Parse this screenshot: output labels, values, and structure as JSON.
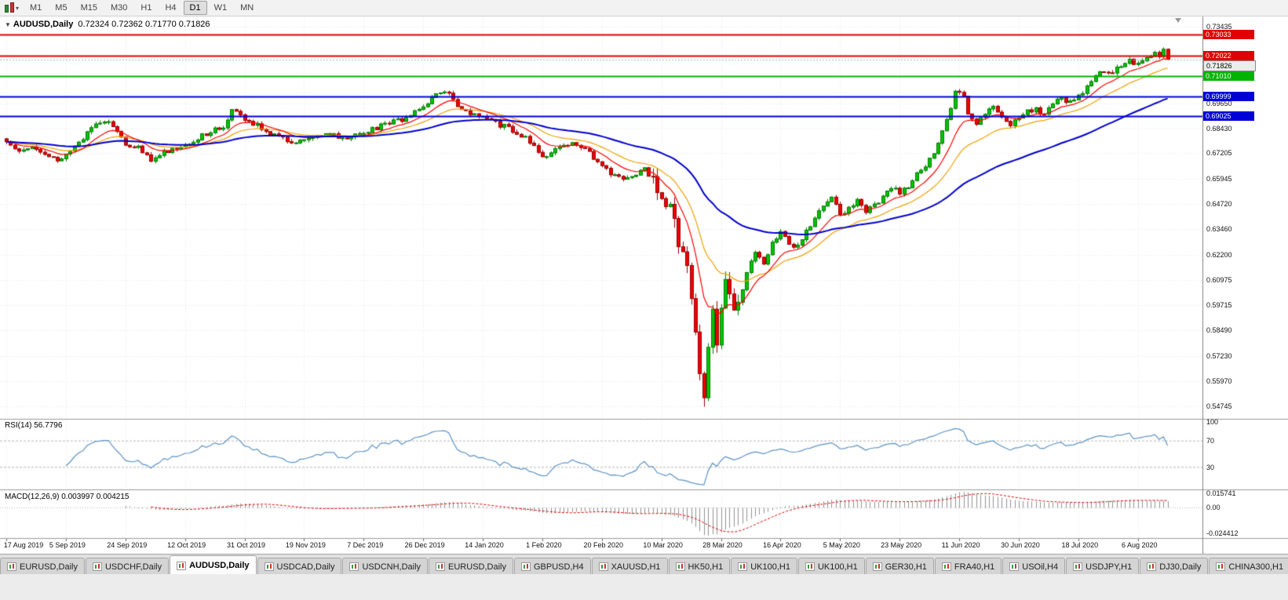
{
  "toolbar": {
    "timeframes": [
      "M1",
      "M5",
      "M15",
      "M30",
      "H1",
      "H4",
      "D1",
      "W1",
      "MN"
    ],
    "active_timeframe": "D1",
    "dropdown_icon": "▾"
  },
  "chart": {
    "collapse_icon": "▼",
    "symbol_period": "AUDUSD,Daily",
    "ohlc_display": "0.72324 0.72362 0.71770 0.71826",
    "y_axis_labels": [
      "0.73435",
      "0.69650",
      "0.68430",
      "0.67205",
      "0.65945",
      "0.64720",
      "0.63460",
      "0.62200",
      "0.60975",
      "0.59715",
      "0.58490",
      "0.57230",
      "0.55970",
      "0.54745"
    ],
    "x_axis_labels": [
      "17 Aug 2019",
      "5 Sep 2019",
      "24 Sep 2019",
      "12 Oct 2019",
      "31 Oct 2019",
      "19 Nov 2019",
      "7 Dec 2019",
      "26 Dec 2019",
      "14 Jan 2020",
      "1 Feb 2020",
      "20 Feb 2020",
      "10 Mar 2020",
      "28 Mar 2020",
      "16 Apr 2020",
      "5 May 2020",
      "23 May 2020",
      "11 Jun 2020",
      "30 Jun 2020",
      "18 Jul 2020",
      "6 Aug 2020"
    ],
    "levels": [
      {
        "value": 0.73033,
        "label": "0.73033",
        "color": "#e00000",
        "tag_text": "#ffffff"
      },
      {
        "value": 0.72022,
        "label": "0.72022",
        "color": "#e00000",
        "tag_text": "#ffffff"
      },
      {
        "value": 0.7101,
        "label": "0.71010",
        "color": "#00b400",
        "tag_text": "#ffffff"
      },
      {
        "value": 0.69999,
        "label": "0.69999",
        "color": "#0000d8",
        "tag_text": "#ffffff"
      },
      {
        "value": 0.69025,
        "label": "0.69025",
        "color": "#0000d8",
        "tag_text": "#ffffff"
      }
    ],
    "current_price": {
      "value": 0.71826,
      "label": "0.71826"
    },
    "rsi": {
      "label": "RSI(14)",
      "value": "56.7796",
      "scale_labels": [
        "100",
        "70",
        "30"
      ],
      "upper": 70,
      "lower": 30
    },
    "macd": {
      "label": "MACD(12,26,9)",
      "values": "0.003997 0.004215",
      "scale_top": "0.015741",
      "scale_zero": "0.00",
      "scale_bottom": "-0.024412"
    }
  },
  "chart_data": {
    "type": "candlestick",
    "symbol": "AUDUSD",
    "period": "Daily",
    "last_candle": {
      "open": 0.72324,
      "high": 0.72362,
      "low": 0.7177,
      "close": 0.71826
    },
    "visible_range": {
      "price_min": 0.54745,
      "price_max": 0.73435,
      "date_start": "17 Aug 2019",
      "date_end": "Aug 2020"
    },
    "num_candles": 274,
    "candles_per_x_label": 14,
    "horizontal_levels": [
      0.73033,
      0.72022,
      0.7101,
      0.69999,
      0.69025
    ],
    "overlays": [
      {
        "name": "ma-fast",
        "type": "ema",
        "period": 10
      },
      {
        "name": "ma-mid",
        "type": "ema",
        "period": 21
      },
      {
        "name": "ma-slow",
        "type": "ema",
        "period": 55
      }
    ],
    "rsi_period": 14,
    "macd_params": [
      12,
      26,
      9
    ],
    "noise": {
      "seed": 13,
      "amp": 0.0013,
      "wick": 0.0014,
      "crash_start": 152,
      "crash_end": 173,
      "crash_amp": 0.0035,
      "crash_wick": 0.0045,
      "min_low": 0.5485
    },
    "close_anchors": [
      [
        0,
        0.6775
      ],
      [
        3,
        0.6742
      ],
      [
        6,
        0.6762
      ],
      [
        9,
        0.6705
      ],
      [
        12,
        0.6688
      ],
      [
        14,
        0.6715
      ],
      [
        17,
        0.6772
      ],
      [
        20,
        0.6848
      ],
      [
        23,
        0.6885
      ],
      [
        26,
        0.6838
      ],
      [
        28,
        0.6772
      ],
      [
        31,
        0.6745
      ],
      [
        34,
        0.6688
      ],
      [
        37,
        0.6728
      ],
      [
        40,
        0.6752
      ],
      [
        42,
        0.6765
      ],
      [
        45,
        0.6792
      ],
      [
        48,
        0.683
      ],
      [
        51,
        0.6855
      ],
      [
        53,
        0.6925
      ],
      [
        56,
        0.6892
      ],
      [
        59,
        0.6858
      ],
      [
        62,
        0.6822
      ],
      [
        65,
        0.6788
      ],
      [
        68,
        0.6766
      ],
      [
        70,
        0.6783
      ],
      [
        73,
        0.6797
      ],
      [
        76,
        0.6816
      ],
      [
        79,
        0.6792
      ],
      [
        82,
        0.6812
      ],
      [
        84,
        0.6828
      ],
      [
        87,
        0.6846
      ],
      [
        90,
        0.6868
      ],
      [
        93,
        0.6886
      ],
      [
        96,
        0.693
      ],
      [
        98,
        0.6952
      ],
      [
        100,
        0.6992
      ],
      [
        102,
        0.7022
      ],
      [
        104,
        0.7004
      ],
      [
        106,
        0.6962
      ],
      [
        108,
        0.693
      ],
      [
        110,
        0.6906
      ],
      [
        112,
        0.6892
      ],
      [
        115,
        0.6868
      ],
      [
        118,
        0.6846
      ],
      [
        121,
        0.6812
      ],
      [
        124,
        0.6762
      ],
      [
        126,
        0.6706
      ],
      [
        128,
        0.6722
      ],
      [
        131,
        0.6748
      ],
      [
        134,
        0.6772
      ],
      [
        137,
        0.6722
      ],
      [
        140,
        0.6656
      ],
      [
        143,
        0.6606
      ],
      [
        146,
        0.6588
      ],
      [
        148,
        0.6622
      ],
      [
        150,
        0.6642
      ],
      [
        152,
        0.6582
      ],
      [
        154,
        0.6492
      ],
      [
        156,
        0.6452
      ],
      [
        158,
        0.6282
      ],
      [
        160,
        0.6152
      ],
      [
        161,
        0.5982
      ],
      [
        162,
        0.5832
      ],
      [
        163,
        0.5662
      ],
      [
        164,
        0.5542
      ],
      [
        165,
        0.5752
      ],
      [
        166,
        0.5942
      ],
      [
        167,
        0.5802
      ],
      [
        168,
        0.5942
      ],
      [
        169,
        0.6132
      ],
      [
        170,
        0.6002
      ],
      [
        171,
        0.5922
      ],
      [
        172,
        0.5982
      ],
      [
        174,
        0.6142
      ],
      [
        176,
        0.6222
      ],
      [
        178,
        0.6172
      ],
      [
        180,
        0.6282
      ],
      [
        182,
        0.6332
      ],
      [
        184,
        0.6282
      ],
      [
        186,
        0.6256
      ],
      [
        188,
        0.6332
      ],
      [
        190,
        0.6402
      ],
      [
        192,
        0.6462
      ],
      [
        194,
        0.6512
      ],
      [
        196,
        0.6422
      ],
      [
        198,
        0.6442
      ],
      [
        200,
        0.6482
      ],
      [
        202,
        0.6432
      ],
      [
        204,
        0.6462
      ],
      [
        206,
        0.6512
      ],
      [
        208,
        0.6552
      ],
      [
        210,
        0.6532
      ],
      [
        212,
        0.6562
      ],
      [
        214,
        0.6622
      ],
      [
        216,
        0.6662
      ],
      [
        218,
        0.6722
      ],
      [
        220,
        0.6832
      ],
      [
        222,
        0.6952
      ],
      [
        223,
        0.7032
      ],
      [
        225,
        0.6992
      ],
      [
        226,
        0.6902
      ],
      [
        228,
        0.6852
      ],
      [
        230,
        0.6922
      ],
      [
        232,
        0.6962
      ],
      [
        234,
        0.6902
      ],
      [
        236,
        0.6866
      ],
      [
        238,
        0.6882
      ],
      [
        240,
        0.6922
      ],
      [
        242,
        0.6946
      ],
      [
        244,
        0.6902
      ],
      [
        246,
        0.6962
      ],
      [
        248,
        0.6992
      ],
      [
        250,
        0.6972
      ],
      [
        252,
        0.7002
      ],
      [
        254,
        0.7042
      ],
      [
        256,
        0.7102
      ],
      [
        258,
        0.7126
      ],
      [
        260,
        0.7112
      ],
      [
        262,
        0.7156
      ],
      [
        264,
        0.7182
      ],
      [
        266,
        0.7152
      ],
      [
        268,
        0.7192
      ],
      [
        270,
        0.7226
      ],
      [
        271,
        0.7186
      ],
      [
        272,
        0.72324
      ],
      [
        273,
        0.71826
      ]
    ]
  },
  "tabs": {
    "active_index": 2,
    "items": [
      "EURUSD,Daily",
      "USDCHF,Daily",
      "AUDUSD,Daily",
      "USDCAD,Daily",
      "USDCNH,Daily",
      "EURUSD,Daily",
      "GBPUSD,H4",
      "XAUUSD,H1",
      "HK50,H1",
      "UK100,H1",
      "UK100,H1",
      "GER30,H1",
      "FRA40,H1",
      "USOil,H4",
      "USDJPY,H1",
      "DJ30,Daily",
      "CHINA300,H1",
      "USOil,H1"
    ]
  },
  "colors": {
    "up_fill": "#00c400",
    "up_stroke": "#007c00",
    "down_fill": "#ee0000",
    "down_stroke": "#990000",
    "ma_fast": "#ff0000",
    "ma_mid": "#f0a000",
    "ma_slow": "#0000cc",
    "rsi_line": "#5c92c5",
    "macd_hist": "#909090",
    "macd_signal": "#dd0000",
    "grid": "#e7e7e7",
    "panel_border": "#9a9a9a",
    "price_line": "#b0b0b0",
    "current_tag_bg": "#ececec",
    "current_tag_text": "#000000"
  }
}
